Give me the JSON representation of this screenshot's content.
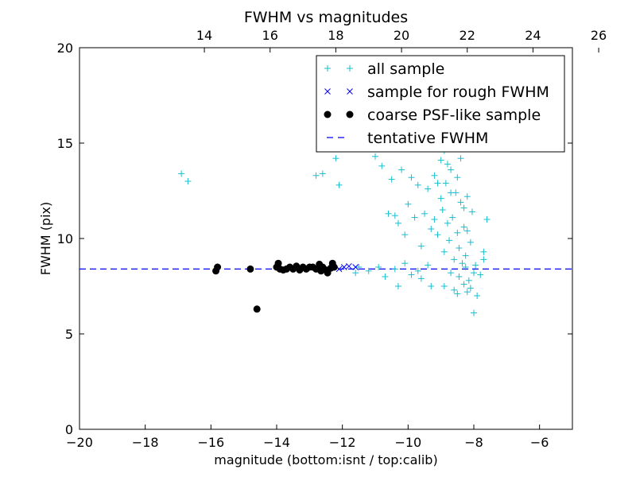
{
  "chart_data": {
    "type": "scatter",
    "title": "FWHM vs magnitudes",
    "xlabel": "magnitude (bottom:isnt / top:calib)",
    "ylabel": "FWHM (pix)",
    "xlim": [
      -20,
      -5
    ],
    "ylim": [
      0,
      20
    ],
    "x_ticks": [
      -20,
      -18,
      -16,
      -14,
      -12,
      -10,
      -8,
      -6
    ],
    "x_tick_labels": [
      "−20",
      "−18",
      "−16",
      "−14",
      "−12",
      "−10",
      "−8",
      "−6"
    ],
    "y_ticks": [
      0,
      5,
      10,
      15,
      20
    ],
    "y_tick_labels": [
      "0",
      "5",
      "10",
      "15",
      "20"
    ],
    "top_axis": {
      "ticks": [
        14,
        16,
        18,
        20,
        22,
        24,
        26
      ],
      "tick_labels": [
        "14",
        "16",
        "18",
        "20",
        "22",
        "24",
        "26"
      ],
      "offset": 30.2
    },
    "grid": false,
    "legend_position": "top-right",
    "tentative_fwhm": 8.4,
    "series": [
      {
        "name": "all sample",
        "marker": "plus",
        "color": "#17becf",
        "points": [
          [
            -16.9,
            13.4
          ],
          [
            -16.7,
            13.0
          ],
          [
            -12.8,
            13.3
          ],
          [
            -12.6,
            13.4
          ],
          [
            -12.2,
            14.2
          ],
          [
            -12.1,
            12.8
          ],
          [
            -11.1,
            15.2
          ],
          [
            -11.0,
            14.3
          ],
          [
            -10.8,
            13.8
          ],
          [
            -10.6,
            11.3
          ],
          [
            -10.5,
            13.1
          ],
          [
            -10.4,
            11.2
          ],
          [
            -10.3,
            10.8
          ],
          [
            -10.2,
            13.6
          ],
          [
            -10.1,
            10.2
          ],
          [
            -10.0,
            11.8
          ],
          [
            -9.9,
            13.2
          ],
          [
            -9.8,
            11.1
          ],
          [
            -9.7,
            12.8
          ],
          [
            -9.6,
            9.6
          ],
          [
            -9.5,
            11.3
          ],
          [
            -9.4,
            12.6
          ],
          [
            -9.3,
            10.5
          ],
          [
            -9.2,
            13.3
          ],
          [
            -9.1,
            10.2
          ],
          [
            -9.0,
            12.1
          ],
          [
            -8.95,
            11.5
          ],
          [
            -8.9,
            9.3
          ],
          [
            -8.85,
            12.9
          ],
          [
            -8.8,
            10.8
          ],
          [
            -8.75,
            9.9
          ],
          [
            -8.7,
            13.6
          ],
          [
            -8.65,
            11.1
          ],
          [
            -8.6,
            8.9
          ],
          [
            -8.55,
            12.4
          ],
          [
            -8.5,
            10.3
          ],
          [
            -8.45,
            9.5
          ],
          [
            -8.4,
            11.9
          ],
          [
            -8.35,
            8.7
          ],
          [
            -8.3,
            10.6
          ],
          [
            -8.25,
            9.1
          ],
          [
            -8.2,
            12.2
          ],
          [
            -8.15,
            7.8
          ],
          [
            -8.1,
            9.8
          ],
          [
            -8.05,
            11.4
          ],
          [
            -8.0,
            8.2
          ],
          [
            -9.2,
            11.0
          ],
          [
            -9.1,
            12.9
          ],
          [
            -9.0,
            14.1
          ],
          [
            -8.9,
            14.6
          ],
          [
            -8.8,
            13.9
          ],
          [
            -8.7,
            12.4
          ],
          [
            -8.6,
            14.9
          ],
          [
            -8.5,
            13.2
          ],
          [
            -8.4,
            14.2
          ],
          [
            -8.3,
            11.6
          ],
          [
            -8.2,
            10.4
          ],
          [
            -8.6,
            7.3
          ],
          [
            -8.5,
            7.1
          ],
          [
            -8.3,
            7.6
          ],
          [
            -8.2,
            7.2
          ],
          [
            -8.0,
            6.1
          ],
          [
            -7.9,
            7.0
          ],
          [
            -7.8,
            8.1
          ],
          [
            -7.7,
            8.9
          ],
          [
            -7.6,
            11.0
          ],
          [
            -7.7,
            9.3
          ],
          [
            -9.3,
            7.5
          ],
          [
            -9.6,
            7.9
          ],
          [
            -10.1,
            8.7
          ],
          [
            -10.3,
            7.5
          ],
          [
            -10.9,
            8.5
          ],
          [
            -11.5,
            8.5
          ],
          [
            -11.2,
            8.3
          ],
          [
            -11.6,
            8.2
          ],
          [
            -10.7,
            8.0
          ],
          [
            -9.9,
            8.1
          ],
          [
            -8.9,
            7.5
          ],
          [
            -9.4,
            8.6
          ],
          [
            -8.7,
            8.2
          ],
          [
            -8.45,
            8.0
          ],
          [
            -8.25,
            8.5
          ],
          [
            -8.1,
            7.4
          ],
          [
            -7.95,
            8.6
          ],
          [
            -9.7,
            8.3
          ],
          [
            -10.4,
            8.4
          ]
        ]
      },
      {
        "name": "sample for rough FWHM",
        "marker": "x",
        "color": "#0000ff",
        "points": [
          [
            -12.3,
            8.5
          ],
          [
            -12.1,
            8.4
          ],
          [
            -11.95,
            8.5
          ],
          [
            -11.8,
            8.55
          ],
          [
            -11.6,
            8.5
          ]
        ]
      },
      {
        "name": "coarse PSF-like sample",
        "marker": "dot",
        "color": "#000000",
        "points": [
          [
            -15.85,
            8.3
          ],
          [
            -15.8,
            8.5
          ],
          [
            -14.8,
            8.4
          ],
          [
            -14.6,
            6.3
          ],
          [
            -14.0,
            8.5
          ],
          [
            -13.95,
            8.7
          ],
          [
            -13.9,
            8.4
          ],
          [
            -13.8,
            8.35
          ],
          [
            -13.7,
            8.4
          ],
          [
            -13.6,
            8.5
          ],
          [
            -13.5,
            8.4
          ],
          [
            -13.4,
            8.55
          ],
          [
            -13.3,
            8.35
          ],
          [
            -13.2,
            8.5
          ],
          [
            -13.1,
            8.4
          ],
          [
            -13.0,
            8.5
          ],
          [
            -12.9,
            8.5
          ],
          [
            -12.8,
            8.4
          ],
          [
            -12.7,
            8.65
          ],
          [
            -12.65,
            8.3
          ],
          [
            -12.6,
            8.5
          ],
          [
            -12.5,
            8.35
          ],
          [
            -12.45,
            8.2
          ],
          [
            -12.35,
            8.45
          ],
          [
            -12.3,
            8.7
          ],
          [
            -12.25,
            8.5
          ]
        ]
      },
      {
        "name": "tentative FWHM",
        "marker": "dashed-line",
        "color": "#0000ff"
      }
    ]
  }
}
